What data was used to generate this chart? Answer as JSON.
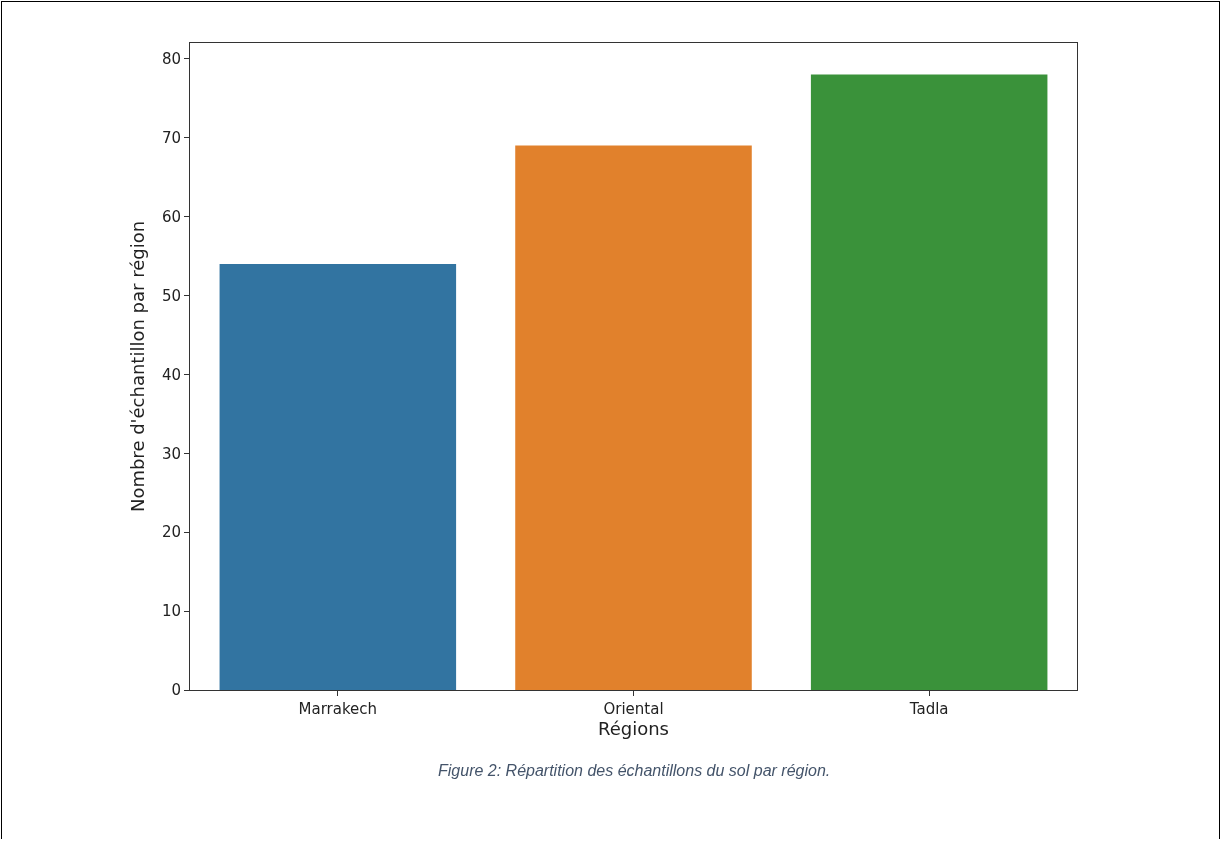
{
  "chart_data": {
    "type": "bar",
    "xlabel": "Régions",
    "ylabel": "Nombre d'échantillon par région",
    "categories": [
      "Marrakech",
      "Oriental",
      "Tadla"
    ],
    "values": [
      54,
      69,
      78
    ],
    "colors": [
      "#3274a1",
      "#e1812c",
      "#3a923a"
    ],
    "ylim": [
      0,
      82
    ],
    "yticks": [
      0,
      10,
      20,
      30,
      40,
      50,
      60,
      70,
      80
    ],
    "annotations": [
      "Figure 2: Répartition des échantillons du sol par région."
    ]
  }
}
